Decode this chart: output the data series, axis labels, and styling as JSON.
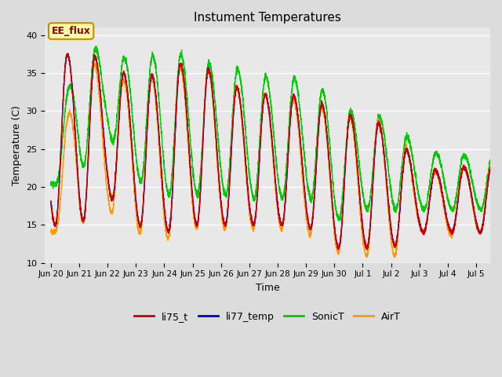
{
  "title": "Instument Temperatures",
  "xlabel": "Time",
  "ylabel": "Temperature (C)",
  "ylim": [
    10,
    41
  ],
  "yticks": [
    10,
    15,
    20,
    25,
    30,
    35,
    40
  ],
  "background_color": "#dcdcdc",
  "plot_bg_color": "#e8e8e8",
  "series_colors": {
    "li75_t": "#cc0000",
    "li77_temp": "#0000cc",
    "SonicT": "#00cc00",
    "AirT": "#ff9900"
  },
  "annotation_text": "EE_flux",
  "annotation_color": "#8b0000",
  "annotation_bg": "#ffffaa",
  "annotation_border": "#cc8800",
  "tick_labels": [
    "Jun 20",
    "Jun 21",
    "Jun 22",
    "Jun 23",
    "Jun 24",
    "Jun 25",
    "Jun 26",
    "Jun 27",
    "Jun 28",
    "Jun 29",
    "Jun 30",
    "Jul 1",
    "Jul 2",
    "Jul 3",
    "Jul 4",
    "Jul 5"
  ],
  "legend_labels": [
    "li75_t",
    "li77_temp",
    "SonicT",
    "AirT"
  ]
}
